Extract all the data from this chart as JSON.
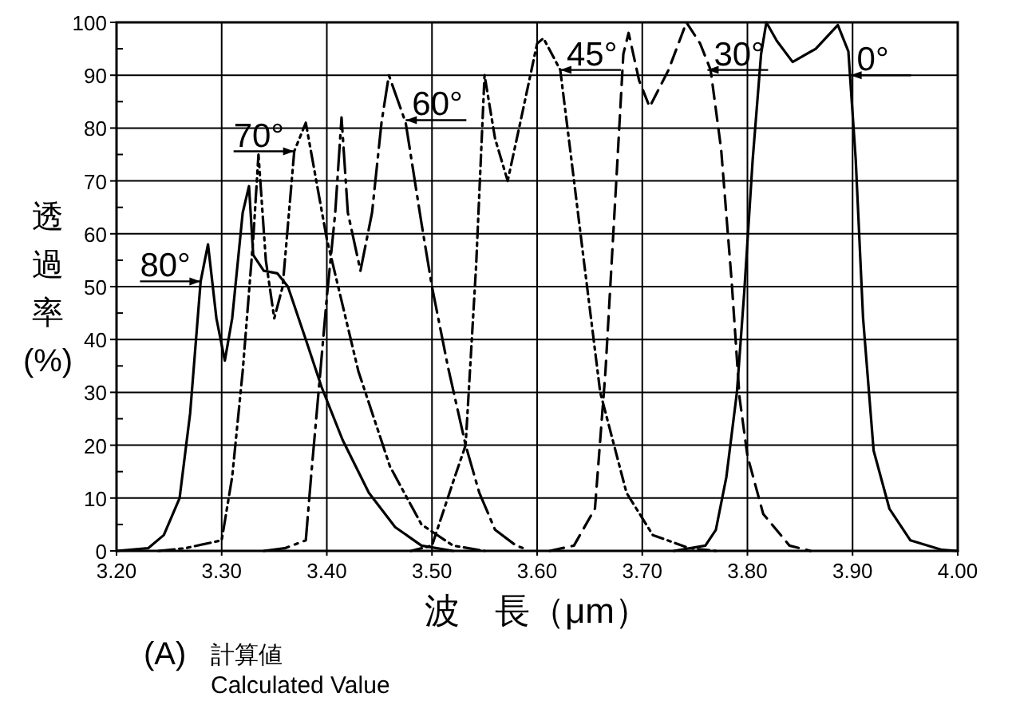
{
  "chart_data": {
    "type": "line",
    "xlabel": "波　長（μm）",
    "ylabel": "透過率(%)",
    "xlim": [
      3.2,
      4.0
    ],
    "ylim": [
      0,
      100
    ],
    "xticks": [
      {
        "value": 3.2,
        "label": "3.20"
      },
      {
        "value": 3.3,
        "label": "3.30"
      },
      {
        "value": 3.4,
        "label": "3.40"
      },
      {
        "value": 3.5,
        "label": "3.50"
      },
      {
        "value": 3.6,
        "label": "3.60"
      },
      {
        "value": 3.7,
        "label": "3.70"
      },
      {
        "value": 3.8,
        "label": "3.80"
      },
      {
        "value": 3.9,
        "label": "3.90"
      },
      {
        "value": 4.0,
        "label": "4.00"
      }
    ],
    "yticks": [
      0,
      10,
      20,
      30,
      40,
      50,
      60,
      70,
      80,
      90,
      100
    ],
    "grid": true,
    "series": [
      {
        "color": "#000000",
        "line_style": "solid",
        "x": [
          3.2,
          3.23,
          3.245,
          3.26,
          3.27,
          3.28,
          3.287,
          3.295,
          3.303,
          3.31,
          3.32,
          3.326,
          3.33,
          3.34,
          3.353,
          3.363,
          3.38,
          3.395,
          3.415,
          3.44,
          3.465,
          3.49,
          3.52
        ],
        "values": [
          0,
          0.5,
          3,
          10,
          26,
          51,
          58,
          44,
          36,
          44,
          64,
          69,
          56,
          53,
          52.5,
          50,
          40,
          31,
          21,
          11,
          4.5,
          1,
          0
        ]
      },
      {
        "color": "#000000",
        "line_style": "dashdotdot",
        "x": [
          3.24,
          3.265,
          3.3,
          3.31,
          3.32,
          3.33,
          3.335,
          3.342,
          3.35,
          3.358,
          3.369,
          3.38,
          3.39,
          3.4,
          3.43,
          3.46,
          3.49,
          3.52,
          3.55
        ],
        "values": [
          0,
          0.5,
          2,
          14,
          34,
          59,
          75,
          55,
          44,
          50,
          75.6,
          81,
          70,
          59,
          34,
          16,
          5,
          1,
          0
        ]
      },
      {
        "color": "#000000",
        "line_style": "longdashdot",
        "x": [
          3.34,
          3.36,
          3.38,
          3.385,
          3.393,
          3.4,
          3.408,
          3.414,
          3.42,
          3.432,
          3.443,
          3.452,
          3.459,
          3.475,
          3.49,
          3.5,
          3.515,
          3.532,
          3.545,
          3.56,
          3.58,
          3.59
        ],
        "values": [
          0,
          0.5,
          2,
          14,
          32,
          48,
          64,
          82,
          64,
          53,
          64,
          81,
          90,
          81,
          62,
          50,
          35,
          20,
          11,
          4,
          1,
          0.3
        ]
      },
      {
        "color": "#000000",
        "line_style": "dashdot",
        "x": [
          3.48,
          3.5,
          3.52,
          3.532,
          3.542,
          3.55,
          3.56,
          3.572,
          3.585,
          3.6,
          3.606,
          3.622,
          3.632,
          3.645,
          3.66,
          3.685,
          3.71,
          3.745,
          3.77
        ],
        "values": [
          0,
          1,
          13,
          20,
          54,
          90,
          78,
          70,
          82,
          96,
          97,
          91,
          75,
          54,
          30,
          11,
          3,
          0.5,
          0
        ]
      },
      {
        "color": "#000000",
        "line_style": "dashed",
        "x": [
          3.612,
          3.635,
          3.655,
          3.665,
          3.675,
          3.682,
          3.687,
          3.697,
          3.707,
          3.725,
          3.742,
          3.755,
          3.765,
          3.775,
          3.785,
          3.7925,
          3.8,
          3.815,
          3.84,
          3.86
        ],
        "values": [
          0,
          1,
          8,
          34,
          69,
          94,
          98,
          89,
          84,
          91,
          100,
          96,
          91,
          76,
          51,
          29,
          18,
          7,
          1,
          0
        ]
      },
      {
        "color": "#000000",
        "line_style": "solid",
        "x": [
          3.73,
          3.76,
          3.77,
          3.78,
          3.79,
          3.797,
          3.805,
          3.813,
          3.818,
          3.828,
          3.843,
          3.865,
          3.886,
          3.896,
          3.903,
          3.91,
          3.92,
          3.935,
          3.955,
          3.985,
          4.0
        ],
        "values": [
          0,
          1,
          4,
          14,
          30,
          49,
          74,
          94,
          100,
          96.5,
          92.5,
          95,
          99.5,
          94.5,
          74,
          44,
          19,
          8,
          2,
          0.2,
          0
        ]
      }
    ],
    "annotations": [
      {
        "text": "80°",
        "x": 3.28,
        "y": 51
      },
      {
        "text": "70°",
        "x": 3.369,
        "y": 75.6
      },
      {
        "text": "60°",
        "x": 3.475,
        "y": 81.5
      },
      {
        "text": "45°",
        "x": 3.622,
        "y": 91
      },
      {
        "text": "30°",
        "x": 3.762,
        "y": 91
      },
      {
        "text": "0°",
        "x": 3.898,
        "y": 90
      },
      "(A)",
      "計算値",
      "Calculated Value"
    ]
  }
}
